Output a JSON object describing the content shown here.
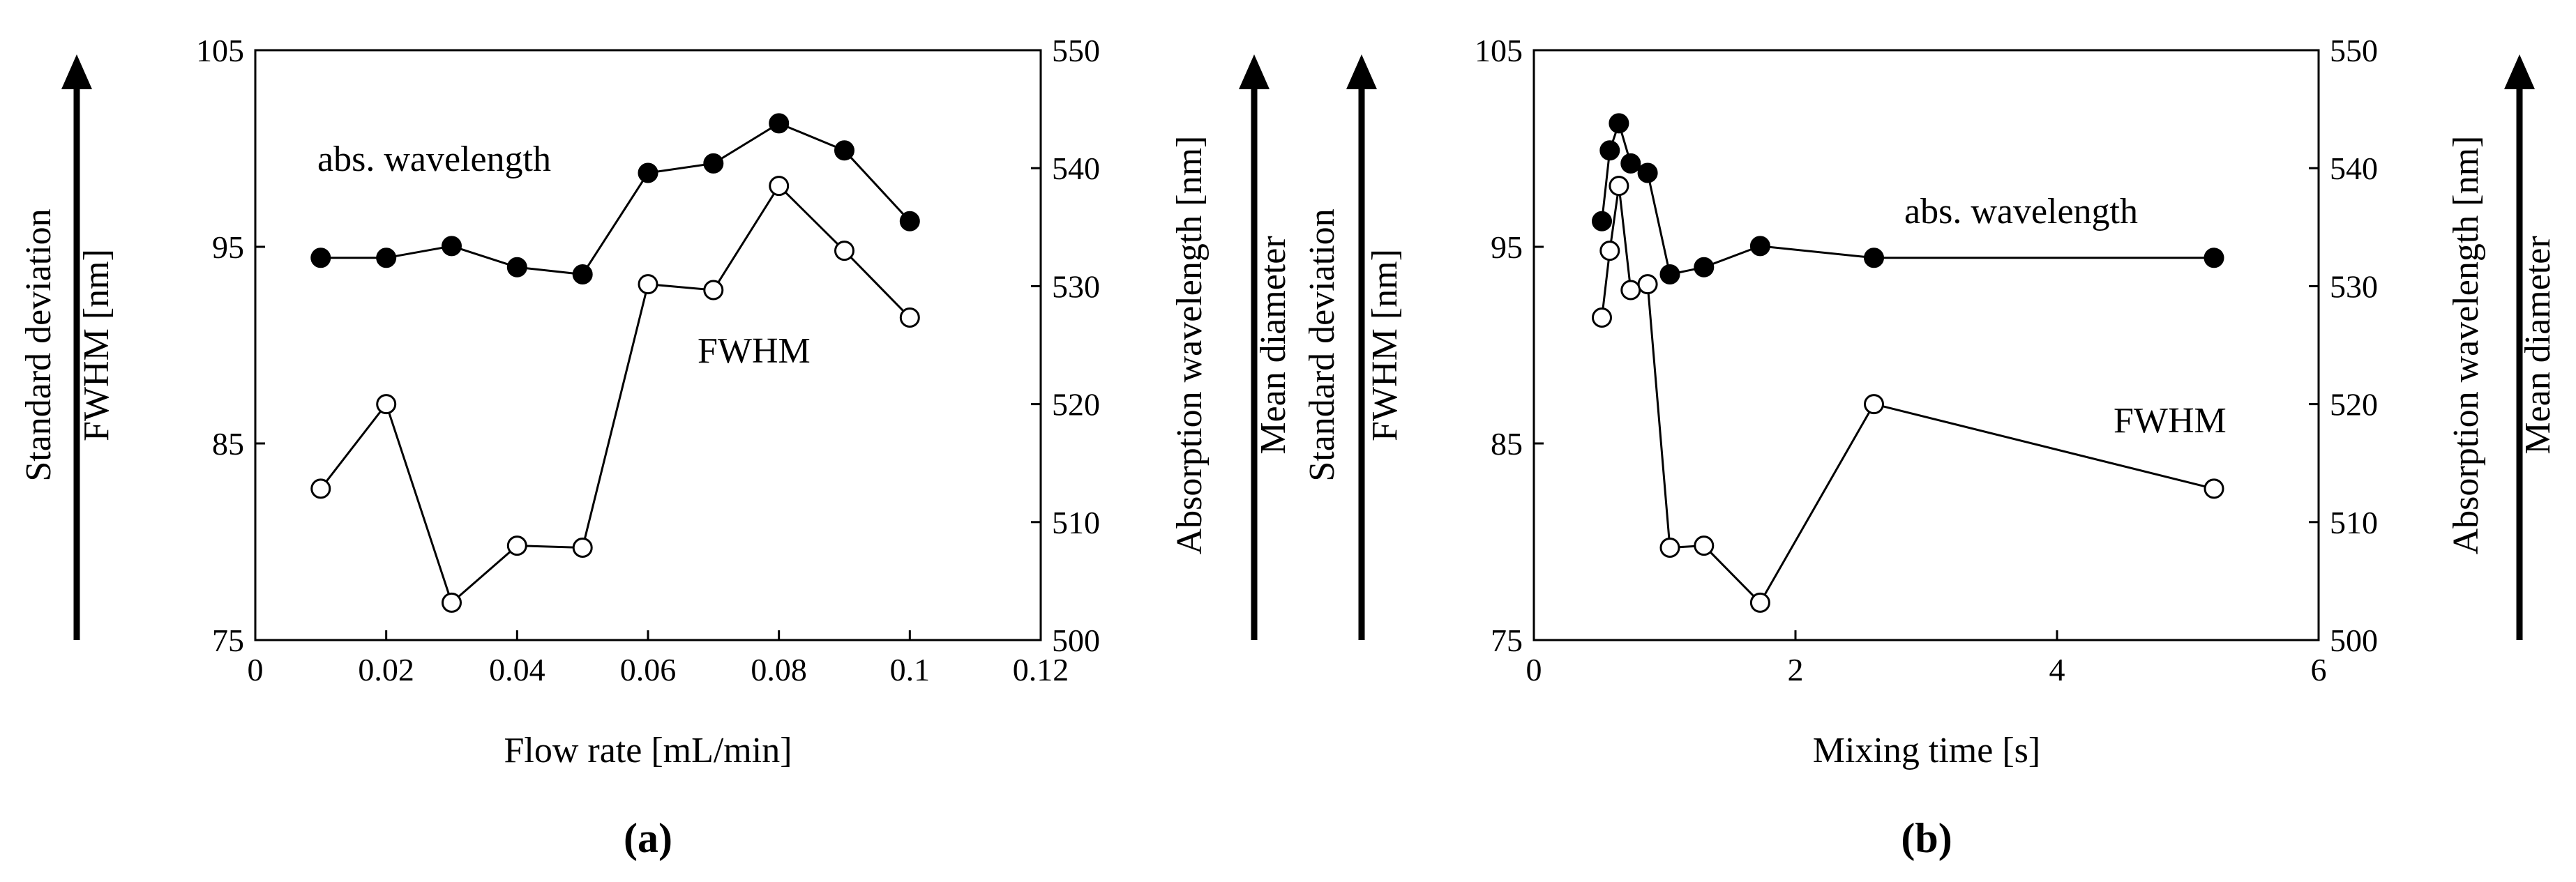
{
  "chart_data": [
    {
      "type": "line",
      "panel": "a",
      "panel_label_open": "(",
      "panel_label": "a",
      "panel_label_close": ")",
      "xlabel": "Flow rate [mL/min]",
      "ylabel_left": "FWHM [nm]",
      "ylabel_left_outer": "Standard deviation",
      "ylabel_right": "Absorption wavelength [nm]",
      "ylabel_right_outer": "Mean diameter",
      "xlim": [
        0,
        0.12
      ],
      "xticks": [
        "0",
        "0.02",
        "0.04",
        "0.06",
        "0.08",
        "0.1",
        "0.12"
      ],
      "ylim_left": [
        75,
        105
      ],
      "yticks_left": [
        "75",
        "85",
        "95",
        "105"
      ],
      "ylim_right": [
        500,
        550
      ],
      "yticks_right": [
        "500",
        "510",
        "520",
        "530",
        "540",
        "550"
      ],
      "annotations": {
        "abs": "abs. wavelength",
        "fwhm": "FWHM"
      },
      "series": [
        {
          "name": "abs. wavelength",
          "axis": "right",
          "marker": "filled",
          "x": [
            0.01,
            0.02,
            0.03,
            0.04,
            0.05,
            0.06,
            0.07,
            0.08,
            0.09,
            0.1
          ],
          "y": [
            532.4,
            532.4,
            533.4,
            531.6,
            531.0,
            539.6,
            540.4,
            543.8,
            541.5,
            535.5
          ]
        },
        {
          "name": "FWHM",
          "axis": "left",
          "marker": "open",
          "x": [
            0.01,
            0.02,
            0.03,
            0.04,
            0.05,
            0.06,
            0.07,
            0.08,
            0.09,
            0.1
          ],
          "y": [
            82.7,
            87.0,
            76.9,
            79.8,
            79.7,
            93.1,
            92.8,
            98.1,
            94.8,
            91.4
          ]
        }
      ]
    },
    {
      "type": "line",
      "panel": "b",
      "panel_label_open": "(",
      "panel_label": "b",
      "panel_label_close": ")",
      "xlabel": "Mixing time [s]",
      "ylabel_left": "FWHM [nm]",
      "ylabel_left_outer": "Standard deviation",
      "ylabel_right": "Absorption wavelength [nm]",
      "ylabel_right_outer": "Mean diameter",
      "xlim": [
        0,
        6
      ],
      "xticks": [
        "0",
        "2",
        "4",
        "6"
      ],
      "ylim_left": [
        75,
        105
      ],
      "yticks_left": [
        "75",
        "85",
        "95",
        "105"
      ],
      "ylim_right": [
        500,
        550
      ],
      "yticks_right": [
        "500",
        "510",
        "520",
        "530",
        "540",
        "550"
      ],
      "annotations": {
        "abs": "abs. wavelength",
        "fwhm": "FWHM"
      },
      "series": [
        {
          "name": "abs. wavelength",
          "axis": "right",
          "marker": "filled",
          "x": [
            0.52,
            0.58,
            0.65,
            0.74,
            0.87,
            1.04,
            1.3,
            1.73,
            2.6,
            5.2
          ],
          "y": [
            535.5,
            541.5,
            543.8,
            540.4,
            539.6,
            531.0,
            531.6,
            533.4,
            532.4,
            532.4
          ]
        },
        {
          "name": "FWHM",
          "axis": "left",
          "marker": "open",
          "x": [
            0.52,
            0.58,
            0.65,
            0.74,
            0.87,
            1.04,
            1.3,
            1.73,
            2.6,
            5.2
          ],
          "y": [
            91.4,
            94.8,
            98.1,
            92.8,
            93.1,
            79.7,
            79.8,
            76.9,
            87.0,
            82.7
          ]
        }
      ]
    }
  ]
}
